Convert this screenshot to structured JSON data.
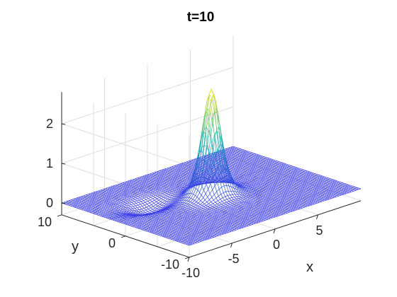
{
  "chart_data": {
    "type": "surface",
    "title": "t=10",
    "xlabel": "x",
    "ylabel": "y",
    "zlabel": "",
    "xlim": [
      -10,
      10
    ],
    "ylim": [
      -10,
      10
    ],
    "zlim": [
      -0.3,
      2.8
    ],
    "xticks": [
      "-10",
      "-5",
      "0",
      "5"
    ],
    "yticks": [
      "-10",
      "0",
      "10"
    ],
    "zticks": [
      "0",
      "1",
      "2"
    ],
    "grid": true,
    "colormap": "parula",
    "colors": {
      "low": "#3b3ee6",
      "mid": "#1fb5b0",
      "high": "#f8e31e"
    },
    "surface": {
      "description_of_shape": "single localized peak on a flat plane with a trailing wave",
      "peak": {
        "x": 0,
        "y": 0,
        "z": 2.7
      },
      "peak_width": 1.2,
      "trough": {
        "x": -5,
        "y": 3,
        "z": -0.25
      },
      "baseline_z": 0
    }
  }
}
